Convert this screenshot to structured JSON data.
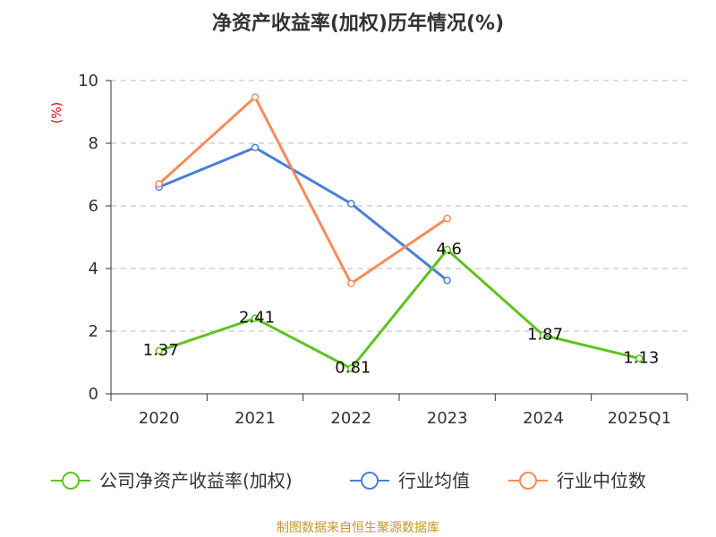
{
  "chart_data": {
    "type": "line",
    "title": "净资产收益率(加权)历年情况(%)",
    "ylabel": "(%)",
    "categories": [
      "2020",
      "2021",
      "2022",
      "2023",
      "2024",
      "2025Q1"
    ],
    "ylim": [
      0,
      10
    ],
    "yticks": [
      "0",
      "2",
      "4",
      "6",
      "8",
      "10"
    ],
    "grid": true,
    "legend_position": "bottom",
    "series": [
      {
        "name": "公司净资产收益率(加权)",
        "color": "#5cc41f",
        "values": [
          1.37,
          2.41,
          0.81,
          4.6,
          1.87,
          1.13
        ],
        "labels": [
          "1.37",
          "2.41",
          "0.81",
          "4.6",
          "1.87",
          "1.13"
        ]
      },
      {
        "name": "行业均值",
        "color": "#4a7fd9",
        "values": [
          6.6,
          7.86,
          6.07,
          3.62,
          null,
          null
        ]
      },
      {
        "name": "行业中位数",
        "color": "#f78c58",
        "values": [
          6.7,
          9.47,
          3.52,
          5.6,
          null,
          null
        ]
      }
    ],
    "unit_color": "#cc0000",
    "source": "制图数据来自恒生聚源数据库",
    "source_color": "#c8962d"
  }
}
